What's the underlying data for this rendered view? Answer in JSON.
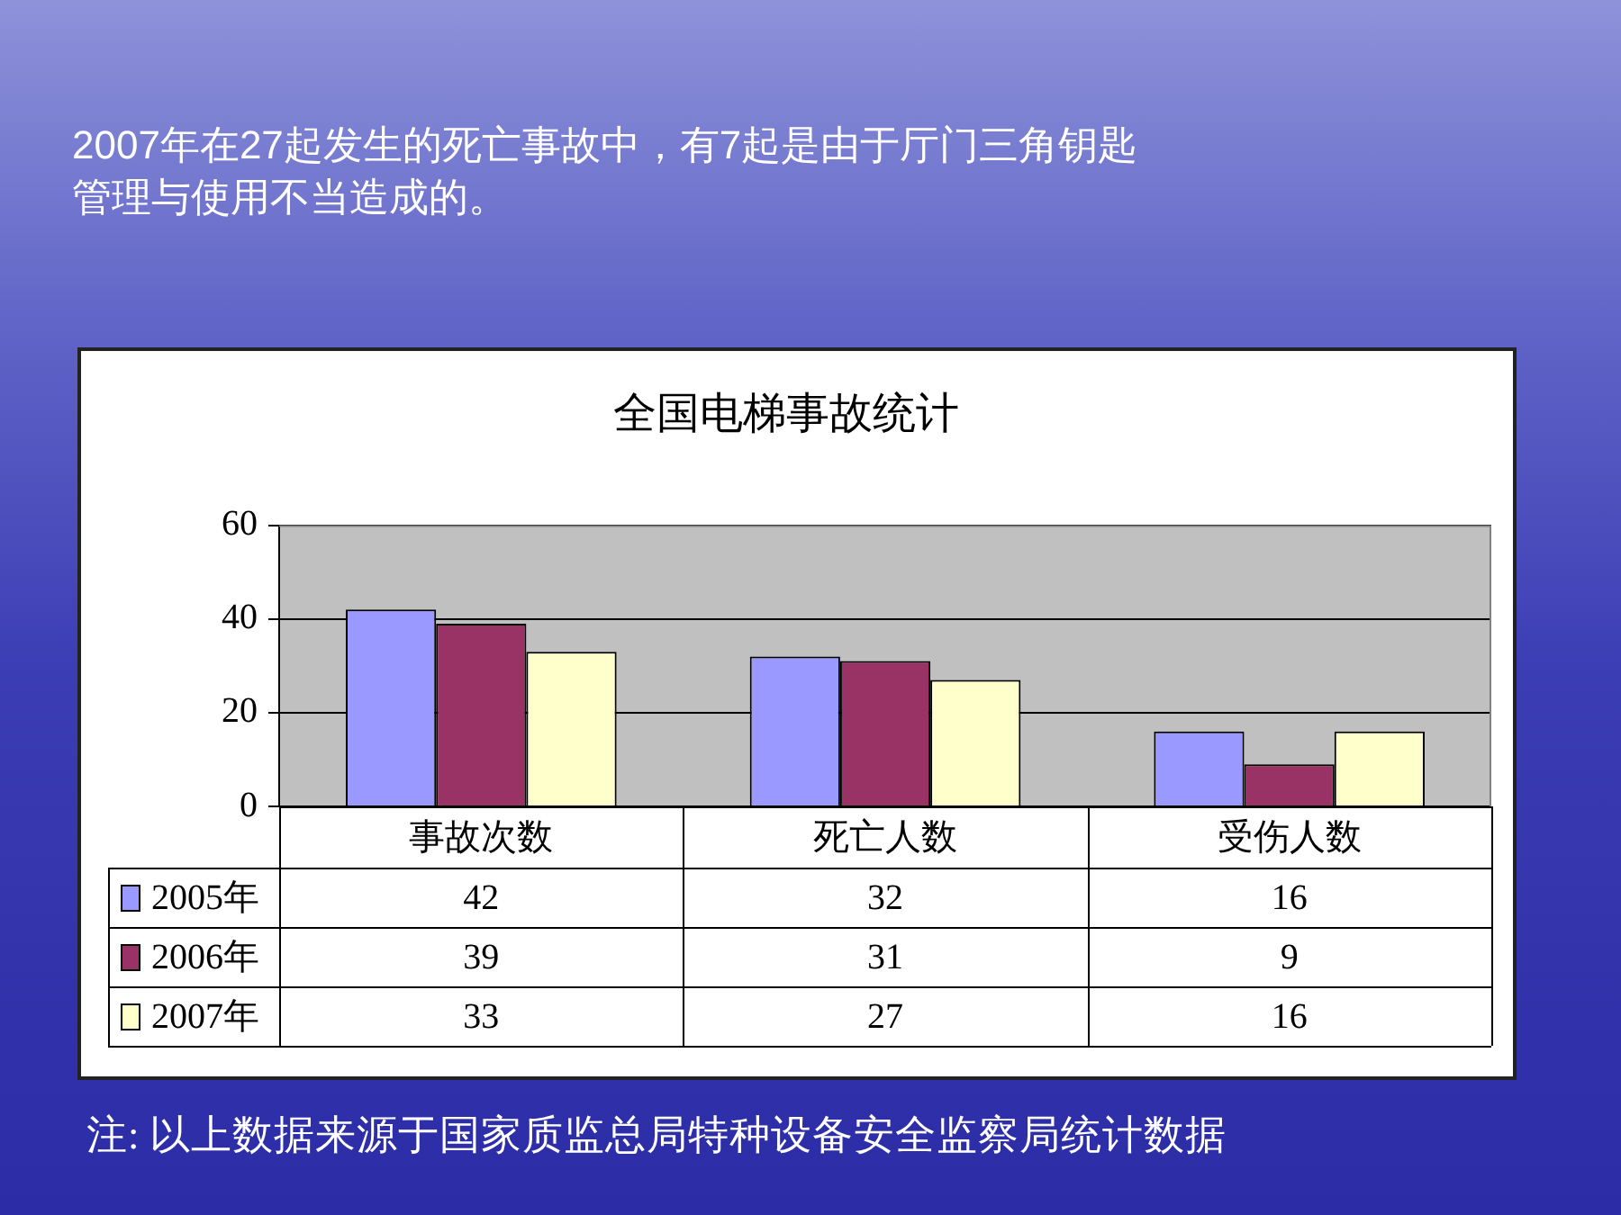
{
  "chart_data": {
    "type": "bar",
    "title": "全国电梯事故统计",
    "categories": [
      "事故次数",
      "死亡人数",
      "受伤人数"
    ],
    "series": [
      {
        "name": "2005年",
        "color": "#9999ff",
        "values": [
          42,
          32,
          16
        ]
      },
      {
        "name": "2006年",
        "color": "#993366",
        "values": [
          39,
          31,
          9
        ]
      },
      {
        "name": "2007年",
        "color": "#ffffcc",
        "values": [
          33,
          27,
          16
        ]
      }
    ],
    "ylim": [
      0,
      60
    ],
    "yticks": [
      0,
      20,
      40,
      60
    ],
    "grid": "y",
    "legend": "bottom left",
    "data_labels": true,
    "annotations": [
      "2007年在27起发生的死亡事故中，有7起是由于厅门三角钥匙管理与使用不当造成的。",
      "注: 以上数据来源于国家质监总局特种设备安全监察局统计数据"
    ]
  }
}
